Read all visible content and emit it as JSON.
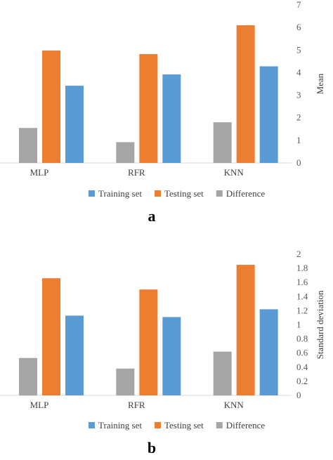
{
  "colors": {
    "training": "#5b9bd5",
    "testing": "#ed7d31",
    "difference": "#a5a5a5",
    "axis": "#d9d9d9"
  },
  "chart_data": [
    {
      "type": "bar",
      "panel_label": "a",
      "categories": [
        "MLP",
        "RFR",
        "KNN"
      ],
      "ylabel": "Mean",
      "ylim": [
        0,
        7
      ],
      "yticks": [
        "0",
        "1",
        "2",
        "3",
        "4",
        "5",
        "6",
        "7"
      ],
      "legend_position": "bottom",
      "series": [
        {
          "name": "Difference",
          "values": [
            1.55,
            0.92,
            1.8
          ]
        },
        {
          "name": "Testing set",
          "values": [
            4.98,
            4.82,
            6.1
          ]
        },
        {
          "name": "Training set",
          "values": [
            3.42,
            3.92,
            4.28
          ]
        }
      ],
      "legend": [
        "Training set",
        "Testing set",
        "Difference"
      ]
    },
    {
      "type": "bar",
      "panel_label": "b",
      "categories": [
        "MLP",
        "RFR",
        "KNN"
      ],
      "ylabel": "Standard deviation",
      "ylim": [
        0,
        2
      ],
      "yticks": [
        "0",
        "0.2",
        "0.4",
        "0.6",
        "0.8",
        "1",
        "1.2",
        "1.4",
        "1.6",
        "1.8",
        "2"
      ],
      "legend_position": "bottom",
      "series": [
        {
          "name": "Difference",
          "values": [
            0.53,
            0.38,
            0.62
          ]
        },
        {
          "name": "Testing set",
          "values": [
            1.66,
            1.5,
            1.85
          ]
        },
        {
          "name": "Training set",
          "values": [
            1.13,
            1.11,
            1.22
          ]
        }
      ],
      "legend": [
        "Training set",
        "Testing set",
        "Difference"
      ]
    }
  ]
}
